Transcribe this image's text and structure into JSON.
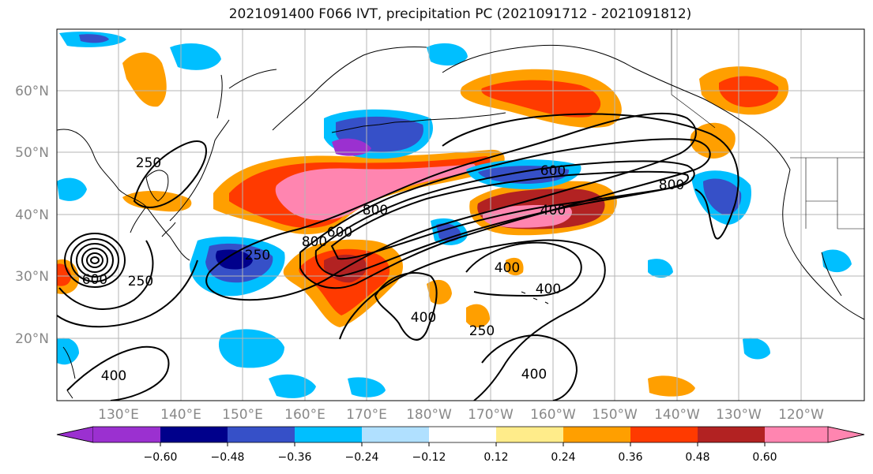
{
  "title": "2021091400 F066 IVT, precipitation PC (2021091712 - 2021091812)",
  "map": {
    "lat_labels": [
      "60°N",
      "50°N",
      "40°N",
      "30°N",
      "20°N"
    ],
    "lon_labels": [
      "130°E",
      "140°E",
      "150°E",
      "160°E",
      "170°E",
      "180°W",
      "170°W",
      "160°W",
      "150°W",
      "140°W",
      "130°W",
      "120°W"
    ],
    "contour_labels": [
      "600",
      "800",
      "400",
      "800",
      "250",
      "800",
      "600",
      "250",
      "250",
      "600",
      "400",
      "400",
      "250",
      "400",
      "400",
      "400"
    ]
  },
  "colorbar": {
    "colors": [
      "#9b30d0",
      "#00008b",
      "#3650c8",
      "#00bfff",
      "#b0e0ff",
      "#ffffff",
      "#ffec8a",
      "#ff9f00",
      "#ff3a00",
      "#b22222",
      "#ff85b0"
    ],
    "tick_labels": [
      "−0.60",
      "−0.48",
      "−0.36",
      "−0.24",
      "−0.12",
      "0.12",
      "0.24",
      "0.36",
      "0.48",
      "0.60"
    ]
  }
}
